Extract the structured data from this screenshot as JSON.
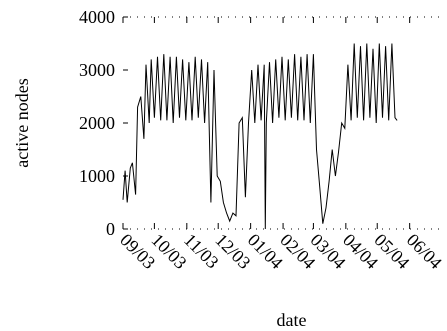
{
  "chart_data": {
    "type": "line",
    "xlabel": "date",
    "ylabel": "active nodes",
    "ylim": [
      0,
      4000
    ],
    "xlim": [
      "2003-09-01",
      "2004-06-30"
    ],
    "yticks": [
      0,
      1000,
      2000,
      3000,
      4000
    ],
    "xticks": [
      {
        "label": "09/03",
        "date": "2003-09-01"
      },
      {
        "label": "10/03",
        "date": "2003-10-01"
      },
      {
        "label": "11/03",
        "date": "2003-11-01"
      },
      {
        "label": "12/03",
        "date": "2003-12-01"
      },
      {
        "label": "01/04",
        "date": "2004-01-01"
      },
      {
        "label": "02/04",
        "date": "2004-02-01"
      },
      {
        "label": "03/04",
        "date": "2004-03-01"
      },
      {
        "label": "04/04",
        "date": "2004-04-01"
      },
      {
        "label": "05/04",
        "date": "2004-05-01"
      },
      {
        "label": "06/04",
        "date": "2004-06-01"
      }
    ],
    "grid": false,
    "series": [
      {
        "x": [
          "2003-09-01",
          "2003-09-03",
          "2003-09-05",
          "2003-09-08",
          "2003-09-10",
          "2003-09-13",
          "2003-09-15",
          "2003-09-18",
          "2003-09-21",
          "2003-09-23",
          "2003-09-26",
          "2003-09-28",
          "2003-10-01",
          "2003-10-04",
          "2003-10-07",
          "2003-10-10",
          "2003-10-13",
          "2003-10-16",
          "2003-10-19",
          "2003-10-22",
          "2003-10-25",
          "2003-10-28",
          "2003-10-31",
          "2003-11-03",
          "2003-11-06",
          "2003-11-09",
          "2003-11-12",
          "2003-11-15",
          "2003-11-18",
          "2003-11-21",
          "2003-11-24",
          "2003-11-27",
          "2003-11-30",
          "2003-12-03",
          "2003-12-06",
          "2003-12-09",
          "2003-12-12",
          "2003-12-15",
          "2003-12-18",
          "2003-12-21",
          "2003-12-24",
          "2003-12-27",
          "2003-12-30",
          "2004-01-02",
          "2004-01-05",
          "2004-01-08",
          "2004-01-11",
          "2004-01-14",
          "2004-01-15",
          "2004-01-16",
          "2004-01-19",
          "2004-01-22",
          "2004-01-25",
          "2004-01-28",
          "2004-01-31",
          "2004-02-03",
          "2004-02-06",
          "2004-02-09",
          "2004-02-12",
          "2004-02-15",
          "2004-02-18",
          "2004-02-21",
          "2004-02-24",
          "2004-02-27",
          "2004-03-01",
          "2004-03-04",
          "2004-03-07",
          "2004-03-10",
          "2004-03-13",
          "2004-03-16",
          "2004-03-19",
          "2004-03-22",
          "2004-03-25",
          "2004-03-28",
          "2004-03-31",
          "2004-04-03",
          "2004-04-06",
          "2004-04-09",
          "2004-04-12",
          "2004-04-15",
          "2004-04-18",
          "2004-04-21",
          "2004-04-24",
          "2004-04-27",
          "2004-04-30",
          "2004-05-03",
          "2004-05-06",
          "2004-05-09",
          "2004-05-12",
          "2004-05-15",
          "2004-05-18",
          "2004-05-20"
        ],
        "y": [
          550,
          1100,
          500,
          1150,
          1250,
          650,
          2300,
          2500,
          1700,
          3100,
          2000,
          3200,
          2100,
          3250,
          2050,
          3300,
          2050,
          3250,
          2000,
          3250,
          2100,
          3200,
          2050,
          3150,
          2050,
          3250,
          2100,
          3200,
          2000,
          3150,
          500,
          3000,
          1000,
          900,
          500,
          300,
          150,
          300,
          250,
          2000,
          2100,
          600,
          2000,
          3000,
          2000,
          3100,
          2050,
          3100,
          0,
          2000,
          3150,
          2000,
          3200,
          2100,
          3250,
          2050,
          3200,
          2100,
          3300,
          2050,
          3250,
          2050,
          3300,
          2000,
          3300,
          1500,
          800,
          100,
          400,
          900,
          1500,
          1000,
          1450,
          2000,
          1900,
          3100,
          2050,
          3500,
          2100,
          3450,
          2050,
          3500,
          2100,
          3400,
          2000,
          3500,
          2100,
          3450,
          2050,
          3500,
          2100,
          2050
        ]
      }
    ]
  }
}
